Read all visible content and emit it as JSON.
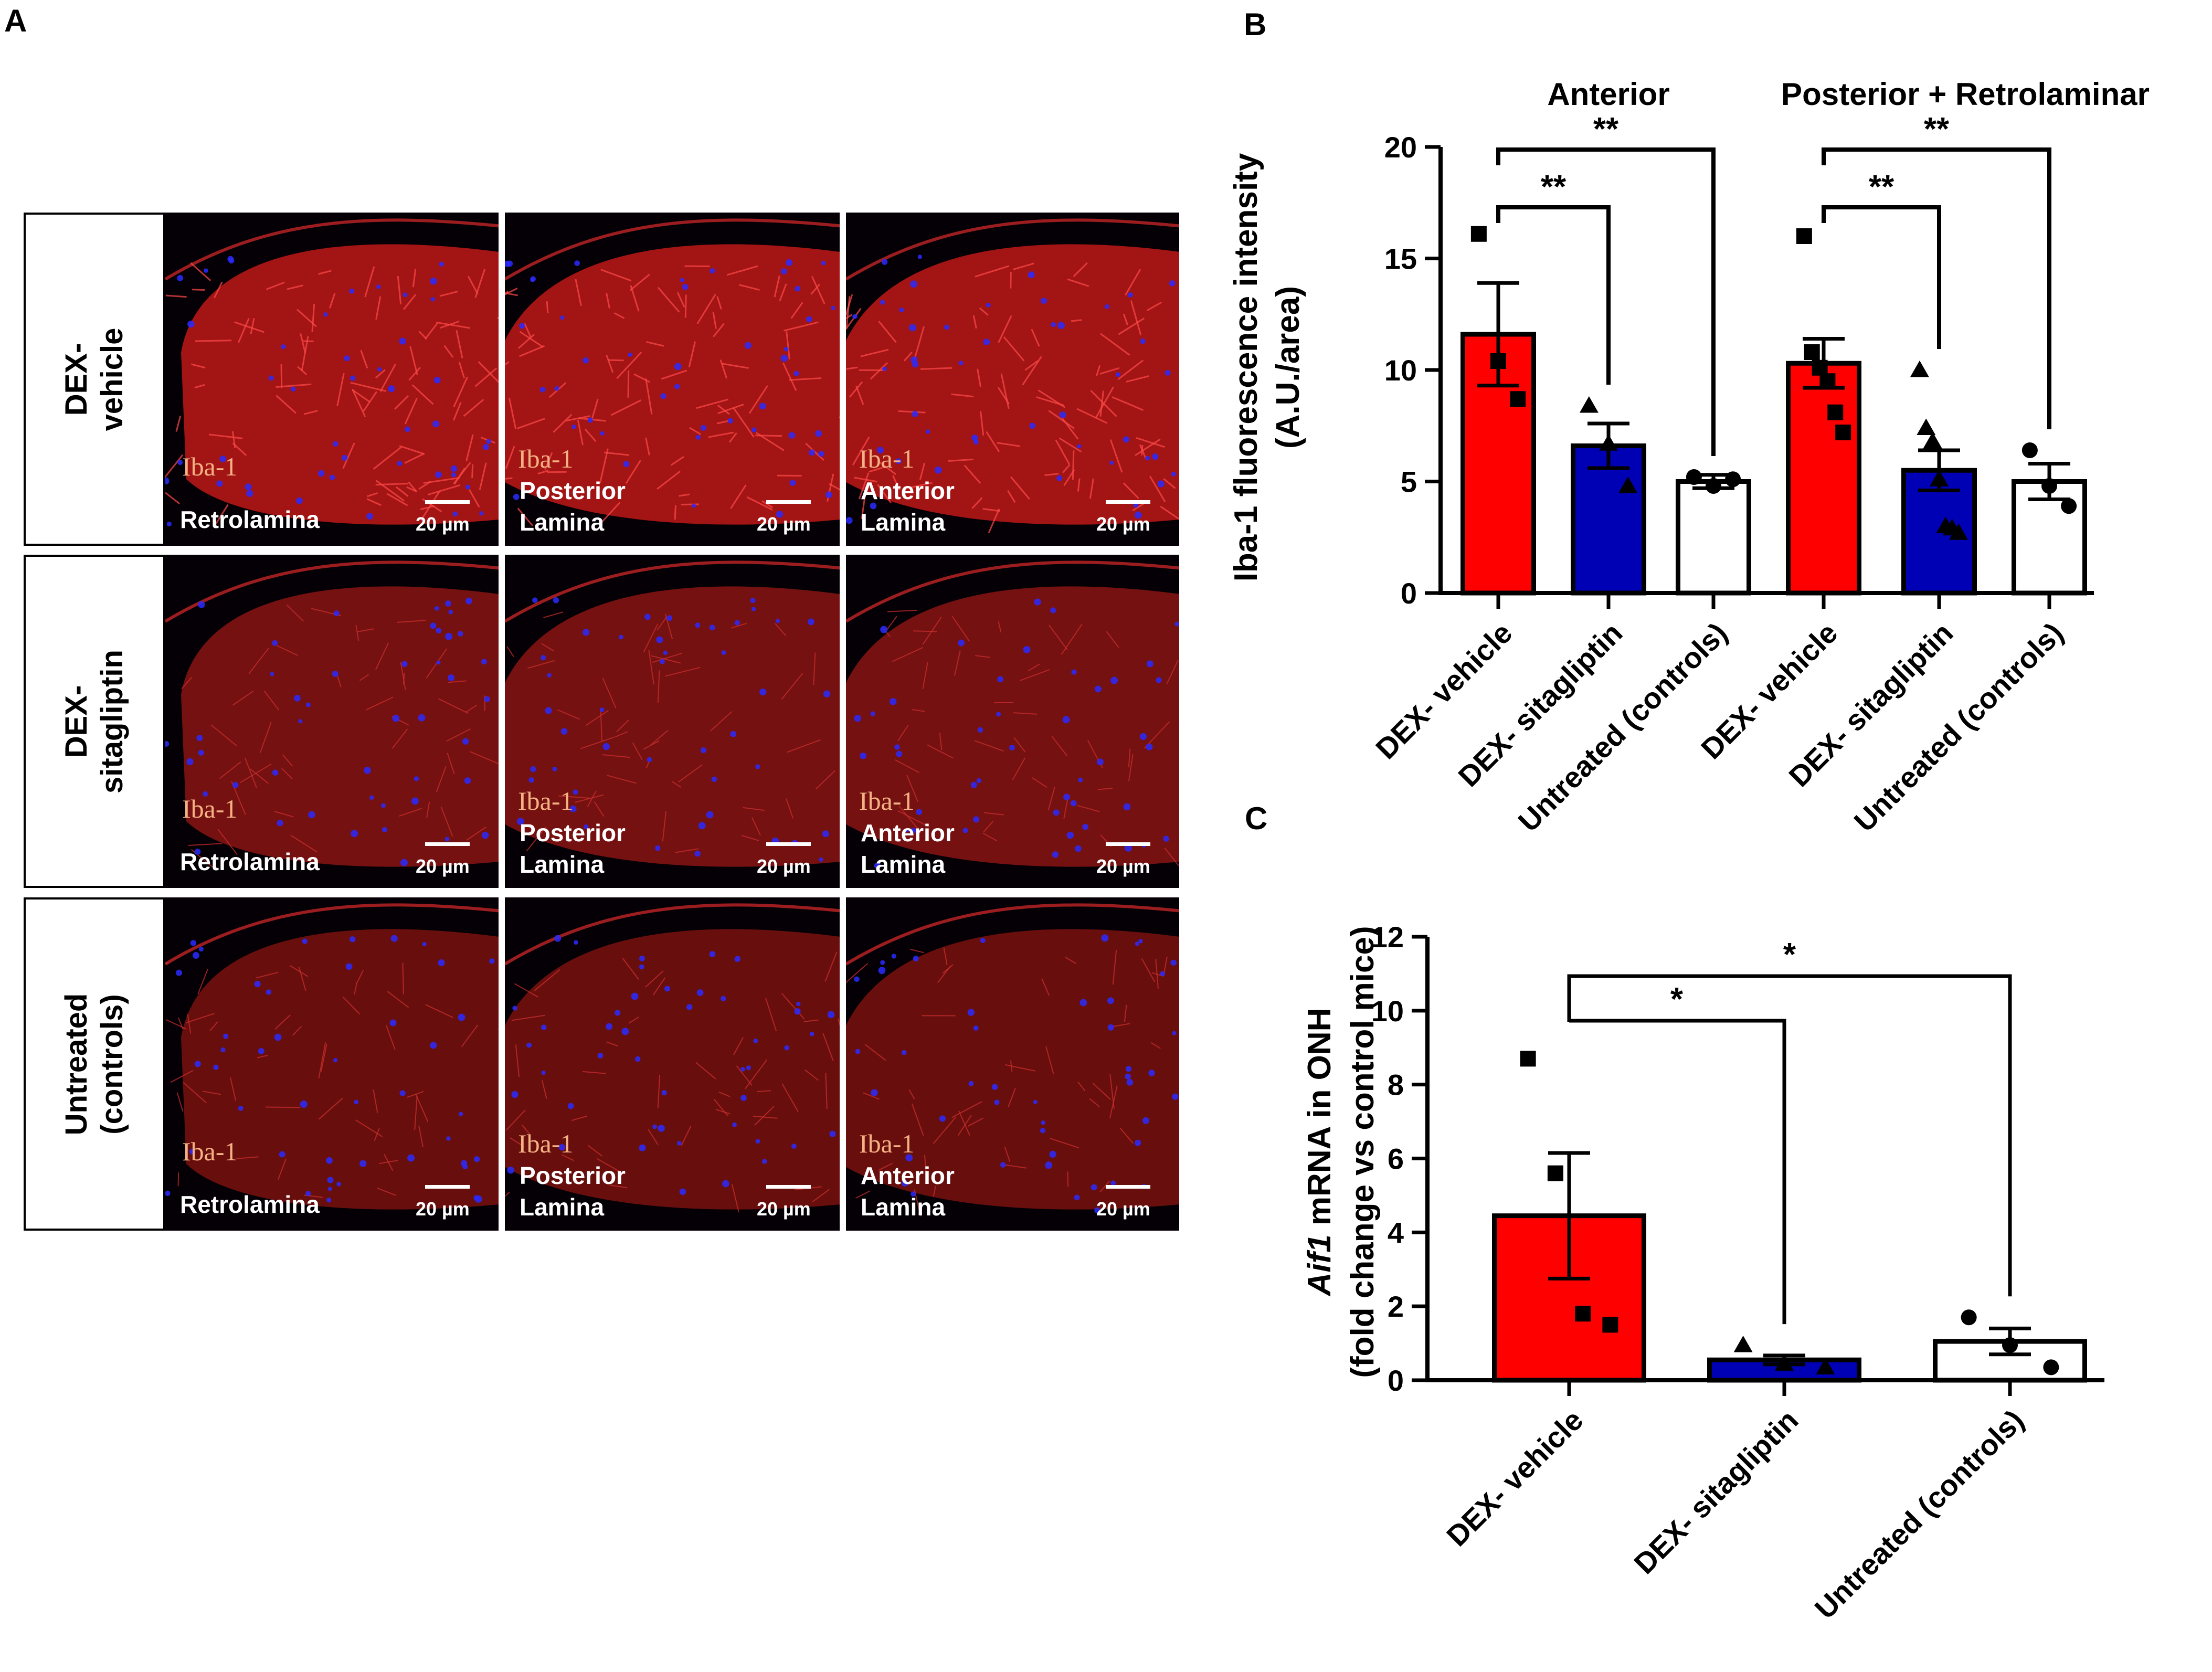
{
  "panels": {
    "a": "A",
    "b": "B",
    "c": "C"
  },
  "panel_a": {
    "rows": [
      {
        "label_lines": [
          "DEX-",
          "vehicle"
        ]
      },
      {
        "label_lines": [
          "DEX-",
          "sitagliptin"
        ]
      },
      {
        "label_lines": [
          "Untreated",
          "(controls)"
        ]
      }
    ],
    "columns": [
      {
        "region_lines": [
          "Retrolamina"
        ]
      },
      {
        "region_lines": [
          "Posterior",
          "Lamina"
        ]
      },
      {
        "region_lines": [
          "Anterior",
          "Lamina"
        ]
      }
    ],
    "stain_label": "Iba-1",
    "scale_label": "20 µm",
    "colors": {
      "stain": "#e0201f",
      "nuclei": "#2a2aff",
      "background": "#050005"
    }
  },
  "chart_data": [
    {
      "type": "bar",
      "panel": "B",
      "ylabel_lines": [
        "Iba-1 fluorescence intensity",
        "(A.U./area)"
      ],
      "ylim": [
        0,
        20
      ],
      "yticks": [
        0,
        5,
        10,
        15,
        20
      ],
      "groups": [
        {
          "title": "Anterior",
          "categories": [
            "DEX- vehicle",
            "DEX- sitagliptin",
            "Untreated (controls)"
          ]
        },
        {
          "title": "Posterior + Retrolaminar",
          "categories": [
            "DEX- vehicle",
            "DEX- sitagliptin",
            "Untreated (controls)"
          ]
        }
      ],
      "bars": [
        {
          "group": 0,
          "category": "DEX- vehicle",
          "mean": 11.6,
          "sem": 2.3,
          "color": "#ff0000",
          "marker": "square",
          "points": [
            16.1,
            10.4,
            8.7
          ]
        },
        {
          "group": 0,
          "category": "DEX- sitagliptin",
          "mean": 6.6,
          "sem": 1.0,
          "color": "#0000b4",
          "marker": "triangle",
          "points": [
            8.4,
            6.7,
            4.8
          ]
        },
        {
          "group": 0,
          "category": "Untreated (controls)",
          "mean": 5.0,
          "sem": 0.3,
          "color": "#ffffff",
          "marker": "circle",
          "points": [
            5.2,
            4.8,
            5.1
          ]
        },
        {
          "group": 1,
          "category": "DEX- vehicle",
          "mean": 10.3,
          "sem": 1.1,
          "color": "#ff0000",
          "marker": "square",
          "points": [
            16.0,
            10.8,
            10.1,
            9.5,
            8.1,
            7.2
          ]
        },
        {
          "group": 1,
          "category": "DEX- sitagliptin",
          "mean": 5.5,
          "sem": 0.9,
          "color": "#0000b4",
          "marker": "triangle",
          "points": [
            10.0,
            7.4,
            6.8,
            5.1,
            3.0,
            2.9,
            2.7
          ]
        },
        {
          "group": 1,
          "category": "Untreated (controls)",
          "mean": 5.0,
          "sem": 0.8,
          "color": "#ffffff",
          "marker": "circle",
          "points": [
            6.4,
            4.8,
            3.9
          ]
        }
      ],
      "significance": [
        {
          "group": 0,
          "from": 0,
          "to": 1,
          "label": "**"
        },
        {
          "group": 0,
          "from": 0,
          "to": 2,
          "label": "**"
        },
        {
          "group": 1,
          "from": 0,
          "to": 1,
          "label": "**"
        },
        {
          "group": 1,
          "from": 0,
          "to": 2,
          "label": "**"
        }
      ]
    },
    {
      "type": "bar",
      "panel": "C",
      "ylabel_lines": [
        "Aif1 mRNA in ONH",
        "(fold change vs control mice)"
      ],
      "ylabel_italic_word": "Aif1",
      "ylim": [
        0,
        12
      ],
      "yticks": [
        0,
        2,
        4,
        6,
        8,
        10,
        12
      ],
      "categories": [
        "DEX- vehicle",
        "DEX- sitagliptin",
        "Untreated (controls)"
      ],
      "bars": [
        {
          "category": "DEX- vehicle",
          "mean": 4.45,
          "sem": 1.7,
          "color": "#ff0000",
          "marker": "square",
          "points": [
            8.7,
            5.6,
            1.8,
            1.5
          ]
        },
        {
          "category": "DEX- sitagliptin",
          "mean": 0.55,
          "sem": 0.12,
          "color": "#0000b4",
          "marker": "triangle",
          "points": [
            0.95,
            0.45,
            0.35
          ]
        },
        {
          "category": "Untreated (controls)",
          "mean": 1.05,
          "sem": 0.35,
          "color": "#ffffff",
          "marker": "circle",
          "points": [
            1.7,
            0.95,
            0.35
          ]
        }
      ],
      "significance": [
        {
          "from": 0,
          "to": 1,
          "label": "*"
        },
        {
          "from": 0,
          "to": 2,
          "label": "*"
        }
      ]
    }
  ]
}
